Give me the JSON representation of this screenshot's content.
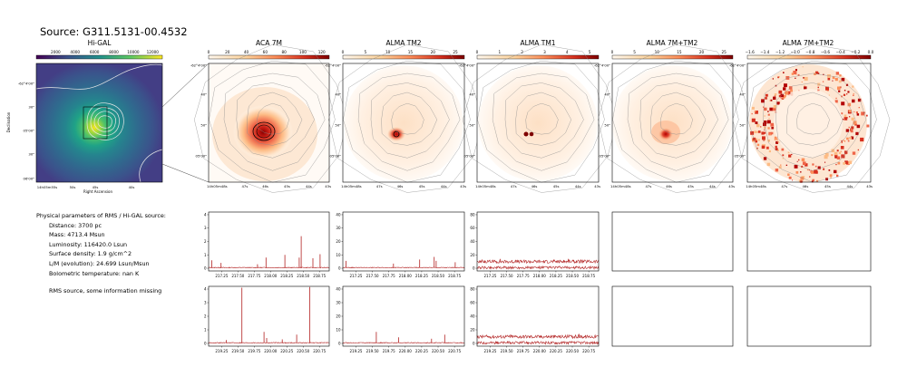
{
  "source_title": "Source: G311.5131-00.4532",
  "colors": {
    "spectrum": "#b22222",
    "contour": "#8c8c8c",
    "higal_contour": "#e8e8e8"
  },
  "panels": [
    {
      "title": "Hi-GAL",
      "cbar_ticks": [
        "2000",
        "4000",
        "6000",
        "8000",
        "10000",
        "12000"
      ],
      "cmap": "viridis"
    },
    {
      "title": "ACA 7M",
      "cbar_ticks": [
        "0",
        "20",
        "40",
        "60",
        "80",
        "100",
        "120"
      ],
      "cmap": "orrd"
    },
    {
      "title": "ALMA TM2",
      "cbar_ticks": [
        "0",
        "5",
        "10",
        "15",
        "20",
        "25"
      ],
      "cmap": "orrd"
    },
    {
      "title": "ALMA TM1",
      "cbar_ticks": [
        "0",
        "1",
        "2",
        "3",
        "4",
        "5"
      ],
      "cmap": "orrd"
    },
    {
      "title": "ALMA 7M+TM2",
      "cbar_ticks": [
        "0",
        "5",
        "10",
        "15",
        "20",
        "25"
      ],
      "cmap": "orrd"
    },
    {
      "title": "ALMA 7M+TM2",
      "cbar_ticks": [
        "−1.6",
        "−1.4",
        "−1.2",
        "−1.0",
        "−0.8",
        "−0.6",
        "−0.4",
        "−0.2",
        "0.0"
      ],
      "cmap": "orrd"
    }
  ],
  "higal_axes": {
    "ylabel": "Declination",
    "xlabel": "Right Ascension",
    "yticks": [
      "-62°4'00\"",
      "30\"",
      "05'00\"",
      "30\"",
      "06'00\""
    ],
    "xticks": [
      "14h05m55s",
      "50s",
      "45s",
      "40s"
    ]
  },
  "map_axes": {
    "yticks": [
      "-62°4'00\"",
      "40\"",
      "50\"",
      "05'00\""
    ],
    "xticks": [
      "14h05m48s",
      "47s",
      "46s",
      "45s",
      "44s",
      "43s"
    ]
  },
  "info": {
    "heading": "Physical parameters of RMS / Hi-GAL source:",
    "lines": [
      "Distance: 3700 pc",
      "Mass: 4713.4 Msun",
      "Luminosity: 116420.0 Lsun",
      "Surface density: 1.9 g/cm^2",
      "L/M (evolution): 24.699 Lsun/Msun",
      "Bolometric temperature: nan K"
    ],
    "note": "RMS source, some information missing"
  },
  "chart_data": [
    {
      "type": "line",
      "panel": "ACA 7M spectrum (band 1)",
      "xlim": [
        217.05,
        218.9
      ],
      "ylim": [
        -0.2,
        4.2
      ],
      "xticks": [
        217.25,
        217.5,
        217.75,
        218.0,
        218.25,
        218.5,
        218.75
      ],
      "yticks": [
        0,
        1,
        2,
        3,
        4
      ],
      "baseline": 0.05,
      "noise": 0.03,
      "peaks": [
        [
          217.1,
          0.55
        ],
        [
          217.24,
          0.35
        ],
        [
          217.8,
          0.25
        ],
        [
          217.93,
          0.75
        ],
        [
          218.22,
          0.95
        ],
        [
          218.44,
          0.75
        ],
        [
          218.47,
          2.35
        ],
        [
          218.65,
          0.7
        ],
        [
          218.76,
          1.0
        ]
      ]
    },
    {
      "type": "line",
      "panel": "ALMA TM2 spectrum (band 1)",
      "xlim": [
        217.05,
        218.9
      ],
      "ylim": [
        -2,
        42
      ],
      "xticks": [
        217.25,
        217.5,
        217.75,
        218.0,
        218.25,
        218.5,
        218.75
      ],
      "yticks": [
        0,
        10,
        20,
        30,
        40
      ],
      "baseline": 0.5,
      "noise": 0.3,
      "peaks": [
        [
          217.1,
          5
        ],
        [
          217.82,
          3
        ],
        [
          218.22,
          6
        ],
        [
          218.44,
          8
        ],
        [
          218.47,
          5
        ],
        [
          218.76,
          4
        ]
      ]
    },
    {
      "type": "line",
      "panel": "ALMA TM1 spectrum (band 1)",
      "xlim": [
        217.05,
        218.9
      ],
      "ylim": [
        -4,
        84
      ],
      "xticks": [
        217.25,
        217.5,
        217.75,
        218.0,
        218.25,
        218.5,
        218.75
      ],
      "yticks": [
        0,
        20,
        40,
        60,
        80
      ],
      "baseline": 10,
      "noise": 2.5,
      "second_trace": {
        "baseline": 1,
        "noise": 2.0
      },
      "peaks": [
        [
          217.4,
          4
        ],
        [
          218.22,
          3
        ],
        [
          218.44,
          4
        ]
      ]
    },
    {
      "type": "line",
      "panel": "ACA 7M spectrum (band 2)",
      "xlim": [
        219.05,
        220.9
      ],
      "ylim": [
        -0.2,
        4.2
      ],
      "xticks": [
        219.25,
        219.5,
        219.75,
        220.0,
        220.25,
        220.5,
        220.75
      ],
      "yticks": [
        0,
        1,
        2,
        3,
        4
      ],
      "baseline": 0.05,
      "noise": 0.03,
      "peaks": [
        [
          219.32,
          0.2
        ],
        [
          219.56,
          4.05
        ],
        [
          219.9,
          0.8
        ],
        [
          219.94,
          0.35
        ],
        [
          220.18,
          0.25
        ],
        [
          220.4,
          0.6
        ],
        [
          220.6,
          4.1
        ]
      ]
    },
    {
      "type": "line",
      "panel": "ALMA TM2 spectrum (band 2)",
      "xlim": [
        219.05,
        220.9
      ],
      "ylim": [
        -2,
        42
      ],
      "xticks": [
        219.25,
        219.5,
        219.75,
        220.0,
        220.25,
        220.5,
        220.75
      ],
      "yticks": [
        0,
        10,
        20,
        30,
        40
      ],
      "baseline": 0.5,
      "noise": 0.3,
      "peaks": [
        [
          219.56,
          8
        ],
        [
          219.9,
          4
        ],
        [
          220.4,
          3
        ],
        [
          220.6,
          6
        ]
      ]
    },
    {
      "type": "line",
      "panel": "ALMA TM1 spectrum (band 2)",
      "xlim": [
        219.05,
        220.9
      ],
      "ylim": [
        -4,
        84
      ],
      "xticks": [
        219.25,
        219.5,
        219.75,
        220.0,
        220.25,
        220.5,
        220.75
      ],
      "yticks": [
        0,
        20,
        40,
        60,
        80
      ],
      "baseline": 10,
      "noise": 2.5,
      "second_trace": {
        "baseline": 1,
        "noise": 2.0
      },
      "peaks": [
        [
          219.56,
          3
        ],
        [
          220.6,
          4
        ]
      ]
    }
  ]
}
